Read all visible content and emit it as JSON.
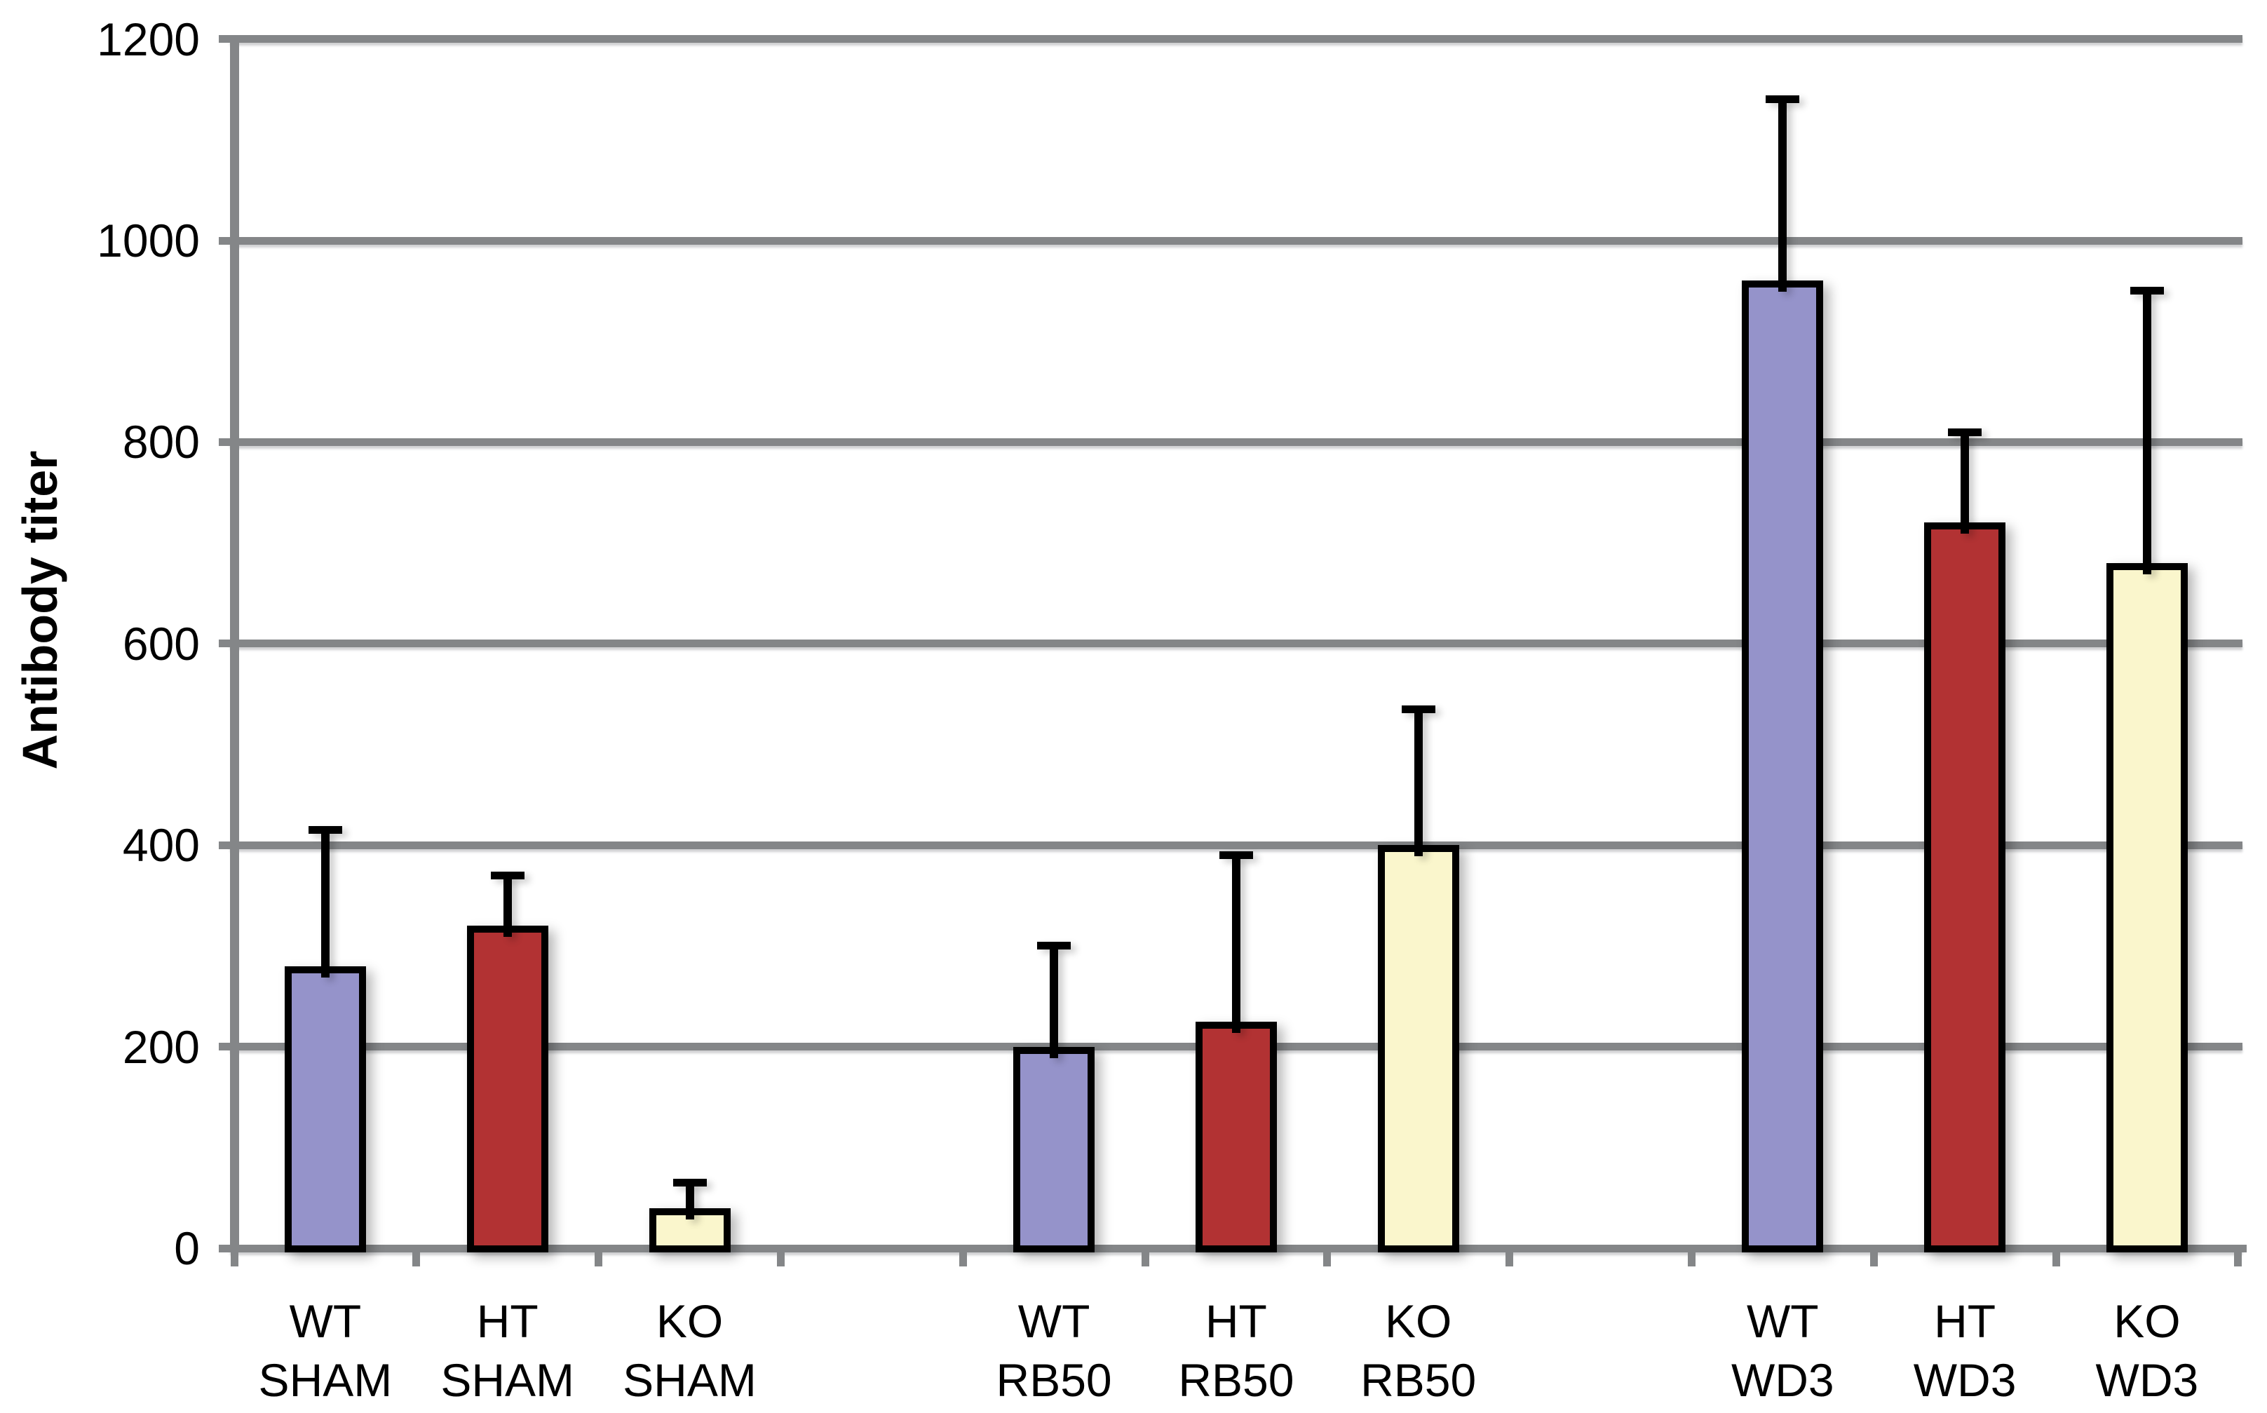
{
  "figure": {
    "background": "#FFFFFF",
    "title": ""
  },
  "chart_data": {
    "type": "bar",
    "title": "",
    "xlabel": "",
    "ylabel": "Antibody titer",
    "ylim": [
      0,
      1200
    ],
    "ytick_interval": 200,
    "yticks": [
      0,
      200,
      400,
      600,
      800,
      1000,
      1200
    ],
    "ytick_labels": [
      "0",
      "200",
      "400",
      "600",
      "800",
      "1000",
      "1200"
    ],
    "grid": true,
    "legend_position": "none",
    "error_bars": "upper-whisker-with-cap",
    "series_colors": {
      "WT": "#9593CA",
      "HT": "#B23233",
      "KO": "#FAF6CC"
    },
    "bar_outline_color": "#000000",
    "gridline_color": "#848688",
    "axis_color": "#848688",
    "groups": [
      {
        "name": "SHAM",
        "bars": [
          {
            "label_line1": "WT",
            "label_line2": "SHAM",
            "series": "WT",
            "value": 280,
            "error_top": 415,
            "sd": 135
          },
          {
            "label_line1": "HT",
            "label_line2": "SHAM",
            "series": "HT",
            "value": 320,
            "error_top": 370,
            "sd": 50
          },
          {
            "label_line1": "KO",
            "label_line2": "SHAM",
            "series": "KO",
            "value": 40,
            "error_top": 65,
            "sd": 25
          }
        ]
      },
      {
        "name": "RB50",
        "bars": [
          {
            "label_line1": "WT",
            "label_line2": "RB50",
            "series": "WT",
            "value": 200,
            "error_top": 300,
            "sd": 100
          },
          {
            "label_line1": "HT",
            "label_line2": "RB50",
            "series": "HT",
            "value": 225,
            "error_top": 390,
            "sd": 165
          },
          {
            "label_line1": "KO",
            "label_line2": "RB50",
            "series": "KO",
            "value": 400,
            "error_top": 535,
            "sd": 135
          }
        ]
      },
      {
        "name": "WD3",
        "bars": [
          {
            "label_line1": "WT",
            "label_line2": "WD3",
            "series": "WT",
            "value": 960,
            "error_top": 1140,
            "sd": 180
          },
          {
            "label_line1": "HT",
            "label_line2": "WD3",
            "series": "HT",
            "value": 720,
            "error_top": 810,
            "sd": 90
          },
          {
            "label_line1": "KO",
            "label_line2": "WD3",
            "series": "KO",
            "value": 680,
            "error_top": 950,
            "sd": 270
          }
        ]
      }
    ]
  }
}
